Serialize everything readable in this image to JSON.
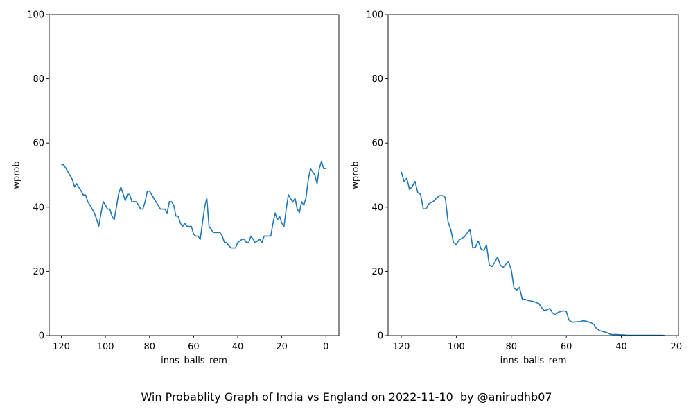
{
  "figure": {
    "suptitle": "Win Probablity Graph of India vs England on 2022-11-10  by @anirudhb07"
  },
  "chart_data": [
    {
      "type": "line",
      "xlabel": "inns_balls_rem",
      "ylabel": "wprob",
      "xlim": [
        125.5,
        -5.9
      ],
      "ylim": [
        0,
        100
      ],
      "xticks": [
        120,
        100,
        80,
        60,
        40,
        20,
        0
      ],
      "yticks": [
        0,
        20,
        40,
        60,
        80,
        100
      ],
      "line_color": "#1f77b4",
      "series": [
        {
          "x": [
            120,
            119,
            118,
            117,
            116,
            115,
            114,
            113,
            112,
            111,
            110,
            109,
            108,
            107,
            106,
            105,
            104,
            103,
            102,
            101,
            100,
            99,
            98,
            97,
            96,
            95,
            94,
            93,
            92,
            91,
            90,
            89,
            88,
            87,
            86,
            85,
            84,
            83,
            82,
            81,
            80,
            79,
            78,
            77,
            76,
            75,
            74,
            73,
            72,
            71,
            70,
            69,
            68,
            67,
            66,
            65,
            64,
            63,
            62,
            61,
            60,
            59,
            58,
            57,
            56,
            55,
            54,
            53,
            52,
            51,
            50,
            49,
            48,
            47,
            46,
            45,
            44,
            43,
            42,
            41,
            40,
            39,
            38,
            37,
            36,
            35,
            34,
            33,
            32,
            31,
            30,
            29,
            28,
            27,
            26,
            25,
            24,
            23,
            22,
            21,
            20,
            19,
            18,
            17,
            16,
            15,
            14,
            13,
            12,
            11,
            10,
            9,
            8,
            7,
            6,
            5,
            4,
            3,
            2,
            1,
            0
          ],
          "y": [
            53.2,
            53.2,
            52.2,
            51.0,
            49.8,
            48.6,
            46.3,
            47.3,
            46.1,
            45.0,
            43.8,
            43.8,
            41.7,
            40.6,
            39.4,
            38.2,
            36.2,
            34.1,
            38.1,
            41.7,
            40.6,
            39.4,
            39.4,
            37.2,
            36.1,
            40.1,
            44.2,
            46.3,
            44.2,
            42.0,
            44.0,
            44.0,
            41.7,
            41.7,
            41.7,
            40.6,
            39.4,
            39.4,
            41.7,
            45.0,
            45.0,
            43.9,
            42.7,
            41.6,
            40.5,
            39.4,
            39.4,
            39.4,
            38.2,
            41.7,
            41.7,
            40.6,
            37.2,
            37.2,
            35.0,
            34.0,
            35.0,
            34.0,
            34.0,
            34.0,
            31.6,
            31.0,
            31.0,
            30.0,
            35.0,
            40.0,
            42.8,
            34.0,
            33.0,
            32.1,
            32.1,
            32.1,
            32.1,
            31.0,
            29.0,
            29.0,
            28.0,
            27.3,
            27.3,
            27.3,
            29.0,
            29.5,
            30.0,
            30.0,
            29.0,
            29.0,
            31.0,
            30.0,
            29.0,
            29.5,
            30.0,
            29.0,
            31.0,
            31.0,
            31.0,
            31.0,
            35.0,
            38.2,
            36.0,
            37.2,
            35.0,
            34.0,
            39.4,
            43.9,
            42.7,
            41.6,
            42.8,
            39.4,
            38.3,
            41.7,
            40.6,
            43.0,
            48.5,
            52.0,
            51.0,
            50.0,
            47.3,
            52.0,
            54.3,
            52.0,
            52.0
          ]
        }
      ]
    },
    {
      "type": "line",
      "xlabel": "inns_balls_rem",
      "ylabel": "wprob",
      "xlim": [
        124.8,
        19.2
      ],
      "ylim": [
        0,
        100
      ],
      "xticks": [
        120,
        100,
        80,
        60,
        40,
        20
      ],
      "yticks": [
        0,
        20,
        40,
        60,
        80,
        100
      ],
      "line_color": "#1f77b4",
      "series": [
        {
          "x": [
            120,
            119,
            118,
            117,
            116,
            115,
            114,
            113,
            112,
            111,
            110,
            109,
            108,
            107,
            106,
            105,
            104,
            103,
            102,
            101,
            100,
            99,
            98,
            97,
            96,
            95,
            94,
            93,
            92,
            91,
            90,
            89,
            88,
            87,
            86,
            85,
            84,
            83,
            82,
            81,
            80,
            79,
            78,
            77,
            76,
            75,
            74,
            73,
            72,
            71,
            70,
            69,
            68,
            67,
            66,
            65,
            64,
            63,
            62,
            61,
            60,
            59,
            58,
            57,
            56,
            55,
            54,
            53,
            52,
            51,
            50,
            49,
            48,
            47,
            46,
            45,
            44,
            43,
            42,
            41,
            40,
            39,
            38,
            37,
            36,
            35,
            34,
            33,
            32,
            31,
            30,
            29,
            28,
            27,
            26,
            25,
            24
          ],
          "y": [
            51.0,
            48.0,
            49.0,
            45.5,
            46.5,
            48.0,
            44.5,
            44.0,
            39.5,
            39.5,
            41.0,
            41.5,
            42.0,
            43.0,
            43.6,
            43.6,
            43.0,
            35.5,
            33.0,
            29.0,
            28.3,
            29.8,
            30.3,
            30.8,
            32.0,
            33.0,
            27.3,
            27.6,
            29.5,
            27.0,
            26.5,
            28.2,
            22.0,
            21.5,
            22.8,
            24.5,
            22.0,
            21.2,
            22.2,
            23.0,
            20.5,
            14.8,
            14.2,
            15.0,
            11.3,
            11.3,
            11.0,
            10.8,
            10.6,
            10.3,
            10.0,
            8.7,
            7.8,
            8.0,
            8.5,
            7.0,
            6.5,
            7.2,
            7.5,
            7.7,
            7.5,
            4.8,
            4.2,
            4.2,
            4.3,
            4.3,
            4.6,
            4.5,
            4.3,
            4.0,
            3.5,
            2.2,
            1.6,
            1.3,
            1.1,
            0.8,
            0.4,
            0.3,
            0.3,
            0.3,
            0.2,
            0.2,
            0.1,
            0.1,
            0.1,
            0.1,
            0.1,
            0.1,
            0.1,
            0.1,
            0.1,
            0.1,
            0.1,
            0.1,
            0.1,
            0.1,
            0.0
          ]
        }
      ]
    }
  ]
}
